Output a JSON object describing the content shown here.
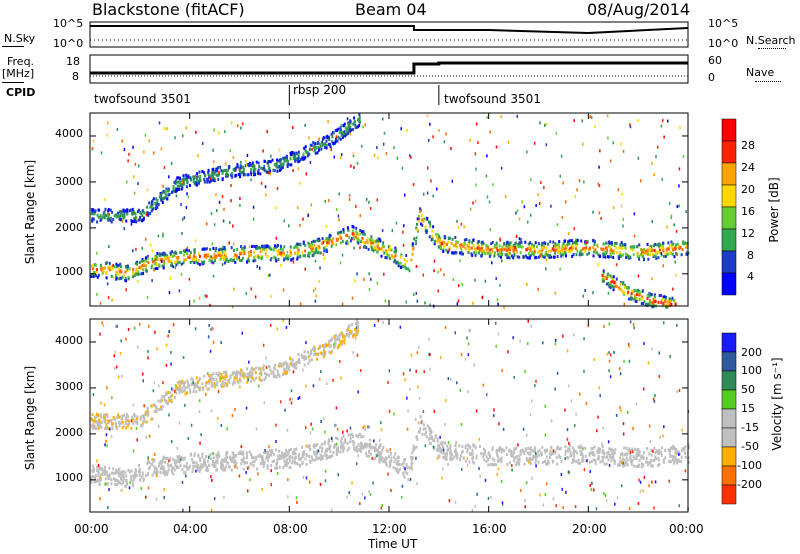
{
  "header": {
    "radar": "Blackstone (fitACF)",
    "beam": "Beam 04",
    "date": "08/Aug/2014"
  },
  "strip": {
    "nsky_label": "N.Sky",
    "nsearch_label": "N.Search",
    "freq_label": "Freq.",
    "freq_unit": "[MHz]",
    "nave_label": "Nave",
    "cpid_label": "CPID",
    "nsky_ticks": [
      "10^5",
      "10^0"
    ],
    "nsearch_ticks": [
      "10^5",
      "10^0"
    ],
    "freq_ticks": [
      "18",
      "8"
    ],
    "nave_ticks": [
      "60",
      "0"
    ],
    "cpid_segments": [
      {
        "label": "twofsound 3501",
        "start_h": 0,
        "end_h": 8
      },
      {
        "label": "rbsp 200",
        "start_h": 8,
        "end_h": 14
      },
      {
        "label": "twofsound 3501",
        "start_h": 14,
        "end_h": 24
      }
    ]
  },
  "power_panel": {
    "ylabel": "Slant Range [km]",
    "yticks": [
      "4000",
      "3000",
      "2000",
      "1000"
    ],
    "colorbar_label": "Power [dB]",
    "colorbar_ticks": [
      "28",
      "24",
      "20",
      "16",
      "12",
      "8",
      "4"
    ],
    "colors": [
      "#0000ff",
      "#1e3cc8",
      "#2e8b57",
      "#2fa84f",
      "#66cc33",
      "#ffd700",
      "#ffa500",
      "#ff6600",
      "#ff2200",
      "#ff0000"
    ]
  },
  "velocity_panel": {
    "ylabel": "Slant Range [km]",
    "yticks": [
      "4000",
      "3000",
      "2000",
      "1000"
    ],
    "colorbar_label": "Velocity [m s⁻¹]",
    "colorbar_ticks": [
      "200",
      "100",
      "50",
      "15",
      "-15",
      "-50",
      "-100",
      "-200"
    ],
    "colors": [
      "#1a1aff",
      "#2d5a9e",
      "#2e8b57",
      "#55cc22",
      "#bfbfbf",
      "#bfbfbf",
      "#ffb000",
      "#ff7000",
      "#ff3000",
      "#ff0000"
    ]
  },
  "xaxis": {
    "label": "Time UT",
    "ticks": [
      "00:00",
      "04:00",
      "08:00",
      "12:00",
      "16:00",
      "20:00",
      "00:00"
    ]
  },
  "chart_data": [
    {
      "type": "heatmap",
      "title": "Power [dB]",
      "xlabel": "Time UT",
      "ylabel": "Slant Range [km]",
      "xlim_hours": [
        0,
        24
      ],
      "ylim": [
        300,
        4500
      ],
      "clim": [
        0,
        32
      ],
      "bands": [
        {
          "name": "main",
          "times": [
            0,
            1.5,
            2.5,
            4,
            6,
            8,
            9,
            10.5,
            12,
            12.8,
            13.2,
            14,
            16,
            18,
            20,
            22,
            24
          ],
          "ranges": [
            1150,
            1050,
            1300,
            1400,
            1450,
            1500,
            1600,
            1900,
            1500,
            1200,
            2300,
            1700,
            1550,
            1550,
            1600,
            1500,
            1600
          ],
          "width": 350,
          "peak_db": 26
        },
        {
          "name": "upper",
          "times": [
            0,
            2,
            3.5,
            5,
            7.5,
            9.5,
            10.8
          ],
          "ranges": [
            2300,
            2300,
            3000,
            3200,
            3400,
            3900,
            4400
          ],
          "width": 280,
          "peak_db": 10
        },
        {
          "name": "late",
          "times": [
            20.5,
            21.5,
            22.5,
            23.5
          ],
          "ranges": [
            1000,
            650,
            450,
            350
          ],
          "width": 300,
          "peak_db": 30
        }
      ]
    },
    {
      "type": "heatmap",
      "title": "Velocity [m s⁻¹]",
      "xlabel": "Time UT",
      "ylabel": "Slant Range [km]",
      "xlim_hours": [
        0,
        24
      ],
      "ylim": [
        300,
        4500
      ],
      "clim": [
        -250,
        250
      ],
      "bands": [
        {
          "name": "main",
          "times": [
            0,
            1.5,
            2.5,
            4,
            6,
            8,
            9,
            10.5,
            12,
            12.8,
            13.2,
            14,
            16,
            18,
            20,
            22,
            24
          ],
          "ranges": [
            1150,
            1050,
            1300,
            1400,
            1450,
            1500,
            1600,
            1900,
            1500,
            1200,
            2300,
            1700,
            1550,
            1550,
            1600,
            1500,
            1600
          ],
          "width": 400,
          "velocity": 0
        },
        {
          "name": "upper",
          "times": [
            0,
            2,
            3.5,
            5,
            7.5,
            9.5,
            10.8
          ],
          "ranges": [
            2300,
            2300,
            3000,
            3200,
            3400,
            3900,
            4400
          ],
          "width": 320,
          "velocity": -40
        }
      ]
    }
  ]
}
